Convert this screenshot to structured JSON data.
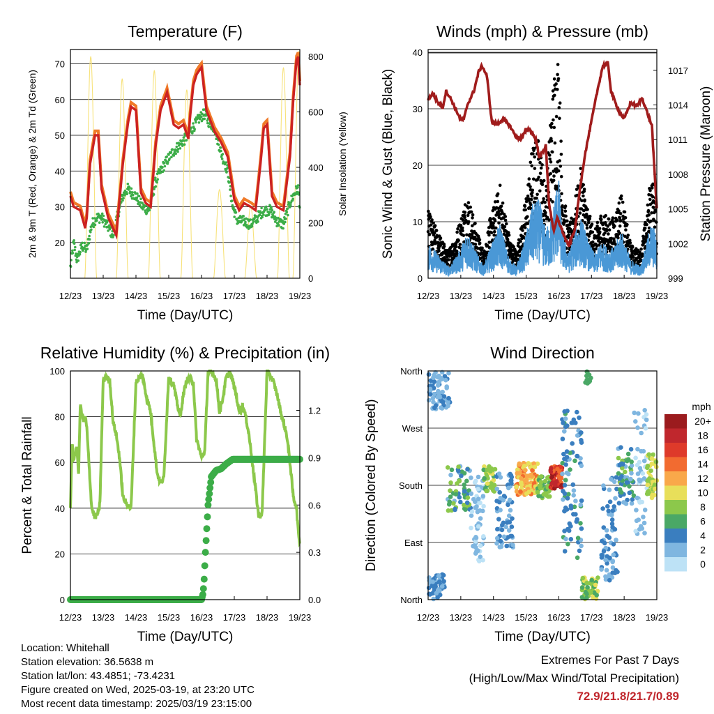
{
  "x_tick_labels": [
    "12/23",
    "13/23",
    "14/23",
    "15/23",
    "16/23",
    "17/23",
    "18/23",
    "19/23"
  ],
  "x_axis_label": "Time (Day/UTC)",
  "colors": {
    "temp_2m": "#cc2222",
    "temp_9m": "#f07a28",
    "dewpoint": "#3cad48",
    "solar": "#f7e27a",
    "wind": "#4a98d6",
    "gust": "#000000",
    "pressure": "#a01c1c",
    "rh": "#8cc84b",
    "precip": "#3cad48"
  },
  "chart_data": [
    {
      "type": "line",
      "title": "Temperature (F)",
      "xlabel": "Time (Day/UTC)",
      "ylabel": "2m & 9m T (Red, Orange) & 2m Td (Green)",
      "y2label": "Solar Insolation (Yellow)",
      "xlim": [
        12,
        19
      ],
      "ylim": [
        10,
        74
      ],
      "y_ticks": [
        20,
        30,
        40,
        50,
        60,
        70
      ],
      "y2lim": [
        0,
        825
      ],
      "y2_ticks": [
        0,
        200,
        400,
        600,
        800
      ],
      "grid": true,
      "series": [
        {
          "key": "temp",
          "x": [
            12.0,
            12.1,
            12.3,
            12.45,
            12.5,
            12.6,
            12.75,
            12.85,
            12.95,
            13.15,
            13.3,
            13.4,
            13.6,
            13.75,
            13.85,
            14.0,
            14.15,
            14.3,
            14.45,
            14.6,
            14.75,
            14.95,
            15.15,
            15.3,
            15.45,
            15.6,
            15.65,
            15.75,
            15.85,
            15.92,
            16.0,
            16.15,
            16.4,
            16.6,
            16.8,
            17.0,
            17.15,
            17.3,
            17.5,
            17.65,
            17.8,
            17.9,
            18.0,
            18.15,
            18.3,
            18.5,
            18.7,
            18.8,
            18.9,
            18.95,
            19.0
          ],
          "y": [
            33,
            30,
            29,
            24,
            27,
            42,
            50,
            50,
            35,
            27,
            24,
            22,
            42,
            53,
            58,
            57,
            34,
            31,
            30,
            47,
            57,
            62,
            53,
            52,
            53,
            49,
            55,
            64,
            67,
            68,
            69,
            57,
            51,
            48,
            44,
            32,
            29,
            31,
            30,
            29,
            42,
            52,
            53,
            33,
            30,
            29,
            44,
            60,
            71,
            72,
            64
          ]
        },
        {
          "key": "dewpoint",
          "x": [
            12.0,
            12.1,
            12.2,
            12.35,
            12.5,
            12.65,
            12.8,
            12.95,
            13.1,
            13.3,
            13.45,
            13.6,
            13.75,
            13.85,
            14.0,
            14.2,
            14.4,
            14.6,
            14.75,
            14.95,
            15.1,
            15.3,
            15.5,
            15.65,
            15.8,
            15.95,
            16.1,
            16.2,
            16.4,
            16.6,
            16.8,
            16.95,
            17.1,
            17.3,
            17.5,
            17.7,
            17.9,
            18.1,
            18.3,
            18.5,
            18.7,
            18.85,
            18.95,
            19.0
          ],
          "y": [
            13,
            20,
            15,
            19,
            18,
            25,
            27,
            27,
            25,
            22,
            28,
            33,
            35,
            34,
            33,
            30,
            29,
            37,
            40,
            43,
            45,
            47,
            49,
            51,
            53,
            55,
            56,
            54,
            52,
            45,
            40,
            30,
            26,
            26,
            25,
            27,
            29,
            29,
            26,
            25,
            31,
            34,
            35,
            30
          ]
        },
        {
          "key": "solar",
          "peaks": [
            [
              12.62,
              800
            ],
            [
              13.58,
              720
            ],
            [
              14.56,
              750
            ],
            [
              15.55,
              680
            ],
            [
              16.55,
              320
            ],
            [
              17.5,
              260
            ],
            [
              18.5,
              760
            ],
            [
              18.97,
              820
            ]
          ],
          "daylight_fraction": 0.18
        }
      ]
    },
    {
      "type": "scatter",
      "title": "Winds (mph) & Pressure (mb)",
      "xlabel": "Time (Day/UTC)",
      "ylabel": "Sonic Wind & Gust (Blue, Black)",
      "y2label": "Station Pressure (Maroon)",
      "xlim": [
        12,
        19
      ],
      "ylim": [
        0,
        40.5
      ],
      "y_ticks": [
        0,
        10,
        20,
        30,
        40
      ],
      "y2lim": [
        999,
        1018.8
      ],
      "y2_ticks": [
        999,
        1002,
        1005,
        1008,
        1011,
        1014,
        1017
      ],
      "grid": true,
      "wind_envelope": {
        "x": [
          12.0,
          12.3,
          12.6,
          12.8,
          13.0,
          13.2,
          13.5,
          13.7,
          13.9,
          14.2,
          14.5,
          14.7,
          14.9,
          15.2,
          15.4,
          15.6,
          15.8,
          15.9,
          16.0,
          16.1,
          16.3,
          16.5,
          16.7,
          16.9,
          17.1,
          17.3,
          17.5,
          17.7,
          17.9,
          18.2,
          18.5,
          18.7,
          18.8,
          18.95,
          19.0
        ],
        "y": [
          6,
          4,
          2,
          3,
          5,
          8,
          4,
          2,
          5,
          9,
          3,
          2,
          5,
          12,
          13,
          8,
          10,
          15,
          16,
          8,
          4,
          8,
          10,
          6,
          4,
          6,
          5,
          5,
          8,
          3,
          2,
          6,
          9,
          8,
          4
        ]
      },
      "gust_envelope": {
        "x": [
          12.0,
          12.3,
          12.6,
          12.8,
          13.0,
          13.2,
          13.5,
          13.7,
          13.9,
          14.2,
          14.5,
          14.7,
          14.9,
          15.2,
          15.4,
          15.6,
          15.8,
          15.9,
          16.0,
          16.1,
          16.3,
          16.5,
          16.7,
          16.9,
          17.1,
          17.3,
          17.5,
          17.7,
          17.9,
          18.2,
          18.5,
          18.7,
          18.8,
          18.95,
          19.0
        ],
        "y": [
          10,
          7,
          4,
          6,
          9,
          13,
          7,
          4,
          9,
          14,
          6,
          4,
          9,
          20,
          21,
          13,
          28,
          33,
          34,
          15,
          7,
          12,
          17,
          10,
          7,
          10,
          9,
          9,
          13,
          5,
          4,
          10,
          15,
          14,
          8
        ]
      },
      "pressure": {
        "x": [
          12.0,
          12.15,
          12.3,
          12.45,
          12.55,
          12.7,
          12.85,
          13.0,
          13.1,
          13.2,
          13.4,
          13.55,
          13.65,
          13.8,
          13.95,
          14.1,
          14.3,
          14.5,
          14.7,
          14.85,
          15.0,
          15.1,
          15.2,
          15.3,
          15.4,
          15.55,
          15.6,
          15.7,
          15.85,
          15.95,
          16.0,
          16.2,
          16.3,
          16.5,
          16.65,
          16.8,
          17.0,
          17.2,
          17.35,
          17.5,
          17.6,
          17.7,
          17.85,
          18.0,
          18.2,
          18.4,
          18.55,
          18.7,
          18.85,
          18.95,
          19.0
        ],
        "y": [
          1014.5,
          1015,
          1014.2,
          1013.8,
          1015.2,
          1014.5,
          1013.6,
          1012.7,
          1012.8,
          1014,
          1015.2,
          1016.9,
          1017.4,
          1016.5,
          1012.5,
          1012.3,
          1012.8,
          1012.2,
          1011.2,
          1011.1,
          1011.8,
          1011.9,
          1011.5,
          1011,
          1009.5,
          1010.1,
          1010.6,
          1005.5,
          1003,
          1004.2,
          1003.9,
          1002.4,
          1001.8,
          1003.3,
          1006.8,
          1009.7,
          1012.6,
          1015.5,
          1017.4,
          1017.6,
          1015.2,
          1014.4,
          1013.4,
          1012.8,
          1014.2,
          1013.9,
          1014.6,
          1013.4,
          1012.2,
          1007.2,
          1005.1
        ]
      }
    },
    {
      "type": "line",
      "title": "Relative Humidity (%) & Precipitation (in)",
      "xlabel": "Time (Day/UTC)",
      "ylabel": "Percent & Total Rainfall",
      "xlim": [
        12,
        19
      ],
      "ylim": [
        0,
        100
      ],
      "y_ticks": [
        0,
        20,
        40,
        60,
        80,
        100
      ],
      "y2lim": [
        0,
        1.45
      ],
      "y2_ticks": [
        "0.0",
        "0.3",
        "0.6",
        "0.9",
        "1.2"
      ],
      "grid": true,
      "series": [
        {
          "key": "rh",
          "x": [
            12.0,
            12.05,
            12.1,
            12.2,
            12.25,
            12.3,
            12.4,
            12.45,
            12.5,
            12.55,
            12.65,
            12.75,
            12.85,
            12.9,
            13.0,
            13.1,
            13.2,
            13.3,
            13.4,
            13.5,
            13.6,
            13.7,
            13.85,
            14.0,
            14.1,
            14.2,
            14.3,
            14.45,
            14.55,
            14.65,
            14.75,
            14.85,
            15.0,
            15.05,
            15.15,
            15.25,
            15.35,
            15.45,
            15.55,
            15.65,
            15.75,
            15.85,
            15.95,
            16.0,
            16.1,
            16.2,
            16.35,
            16.45,
            16.55,
            16.65,
            16.75,
            16.85,
            16.95,
            17.05,
            17.15,
            17.25,
            17.35,
            17.45,
            17.55,
            17.65,
            17.75,
            17.85,
            18.0,
            18.1,
            18.2,
            18.3,
            18.45,
            18.6,
            18.7,
            18.8,
            18.9,
            18.95,
            19.0
          ],
          "y": [
            40,
            68,
            62,
            66,
            55,
            85,
            78,
            80,
            75,
            63,
            40,
            36,
            38,
            42,
            96,
            97,
            96,
            78,
            72,
            62,
            45,
            42,
            40,
            95,
            97,
            98,
            90,
            82,
            68,
            55,
            51,
            53,
            98,
            96,
            94,
            86,
            80,
            90,
            96,
            97,
            95,
            70,
            65,
            62,
            65,
            100,
            99,
            96,
            82,
            88,
            97,
            99,
            96,
            90,
            82,
            85,
            80,
            72,
            60,
            48,
            36,
            38,
            100,
            98,
            95,
            90,
            80,
            72,
            60,
            45,
            40,
            30,
            25
          ]
        },
        {
          "key": "precip",
          "x": [
            12.0,
            16.0,
            16.05,
            16.08,
            16.12,
            16.2,
            16.3,
            16.45,
            16.6,
            16.75,
            16.95,
            17.3,
            17.8,
            18.5,
            19.0
          ],
          "y": [
            0.0,
            0.0,
            0.04,
            0.13,
            0.3,
            0.6,
            0.78,
            0.82,
            0.83,
            0.86,
            0.89,
            0.89,
            0.89,
            0.89,
            0.89
          ]
        }
      ]
    },
    {
      "type": "scatter",
      "title": "Wind Direction",
      "xlabel": "Time (Day/UTC)",
      "ylabel": "Direction (Colored By Speed)",
      "xlim": [
        12,
        19
      ],
      "ylim": [
        0,
        360
      ],
      "y_tick_values": [
        0,
        90,
        180,
        270,
        360
      ],
      "y_tick_labels": [
        "North",
        "East",
        "South",
        "West",
        "North"
      ],
      "grid": true,
      "colorbar": {
        "title": "mph",
        "labels": [
          "20+",
          "18",
          "16",
          "14",
          "12",
          "10",
          "8",
          "6",
          "4",
          "2",
          "0"
        ],
        "colors": [
          "#9b1b1e",
          "#c0272d",
          "#de3a2a",
          "#f26b30",
          "#f9a84a",
          "#e8df5a",
          "#8cc84b",
          "#4aa866",
          "#3a7ebf",
          "#7fb6e0",
          "#bde2f6"
        ]
      },
      "clusters": [
        {
          "x": [
            12.0,
            12.7
          ],
          "dir": [
            300,
            360
          ],
          "speed": [
            1,
            4
          ],
          "n": 70
        },
        {
          "x": [
            12.0,
            12.5
          ],
          "dir": [
            0,
            40
          ],
          "speed": [
            2,
            5
          ],
          "n": 50
        },
        {
          "x": [
            12.6,
            13.3
          ],
          "dir": [
            140,
            210
          ],
          "speed": [
            2,
            9
          ],
          "n": 60
        },
        {
          "x": [
            13.3,
            13.7
          ],
          "dir": [
            60,
            200
          ],
          "speed": [
            0,
            3
          ],
          "n": 60
        },
        {
          "x": [
            13.7,
            14.05
          ],
          "dir": [
            170,
            210
          ],
          "speed": [
            6,
            10
          ],
          "n": 40
        },
        {
          "x": [
            14.1,
            14.6
          ],
          "dir": [
            80,
            200
          ],
          "speed": [
            1,
            5
          ],
          "n": 70
        },
        {
          "x": [
            14.7,
            15.35
          ],
          "dir": [
            165,
            215
          ],
          "speed": [
            9,
            14
          ],
          "n": 110
        },
        {
          "x": [
            15.35,
            15.75
          ],
          "dir": [
            160,
            195
          ],
          "speed": [
            6,
            9
          ],
          "n": 50
        },
        {
          "x": [
            15.75,
            16.1
          ],
          "dir": [
            175,
            210
          ],
          "speed": [
            14,
            20
          ],
          "n": 90
        },
        {
          "x": [
            16.1,
            16.7
          ],
          "dir": [
            60,
            300
          ],
          "speed": [
            2,
            6
          ],
          "n": 90
        },
        {
          "x": [
            16.7,
            17.2
          ],
          "dir": [
            0,
            35
          ],
          "speed": [
            5,
            11
          ],
          "n": 60
        },
        {
          "x": [
            16.8,
            17.0
          ],
          "dir": [
            340,
            360
          ],
          "speed": [
            5,
            8
          ],
          "n": 12
        },
        {
          "x": [
            17.3,
            17.8
          ],
          "dir": [
            30,
            200
          ],
          "speed": [
            1,
            5
          ],
          "n": 70
        },
        {
          "x": [
            17.8,
            18.3
          ],
          "dir": [
            150,
            240
          ],
          "speed": [
            2,
            8
          ],
          "n": 60
        },
        {
          "x": [
            18.3,
            18.7
          ],
          "dir": [
            100,
            300
          ],
          "speed": [
            0,
            3
          ],
          "n": 50
        },
        {
          "x": [
            18.7,
            19.0
          ],
          "dir": [
            160,
            230
          ],
          "speed": [
            7,
            11
          ],
          "n": 50
        }
      ]
    }
  ],
  "station_info": {
    "location": "Location: Whitehall",
    "elevation": "Station elevation: 36.5638 m",
    "latlon": "Station lat/lon: 43.4851; -73.4231",
    "created": "Figure created on Wed, 2025-03-19, at 23:20 UTC",
    "latest": "Most recent data timestamp: 2025/03/19 23:15:00"
  },
  "extremes": {
    "title": "Extremes For Past 7 Days",
    "subtitle": "(High/Low/Max Wind/Total Precipitation)",
    "value": "72.9/21.8/21.7/0.89"
  }
}
